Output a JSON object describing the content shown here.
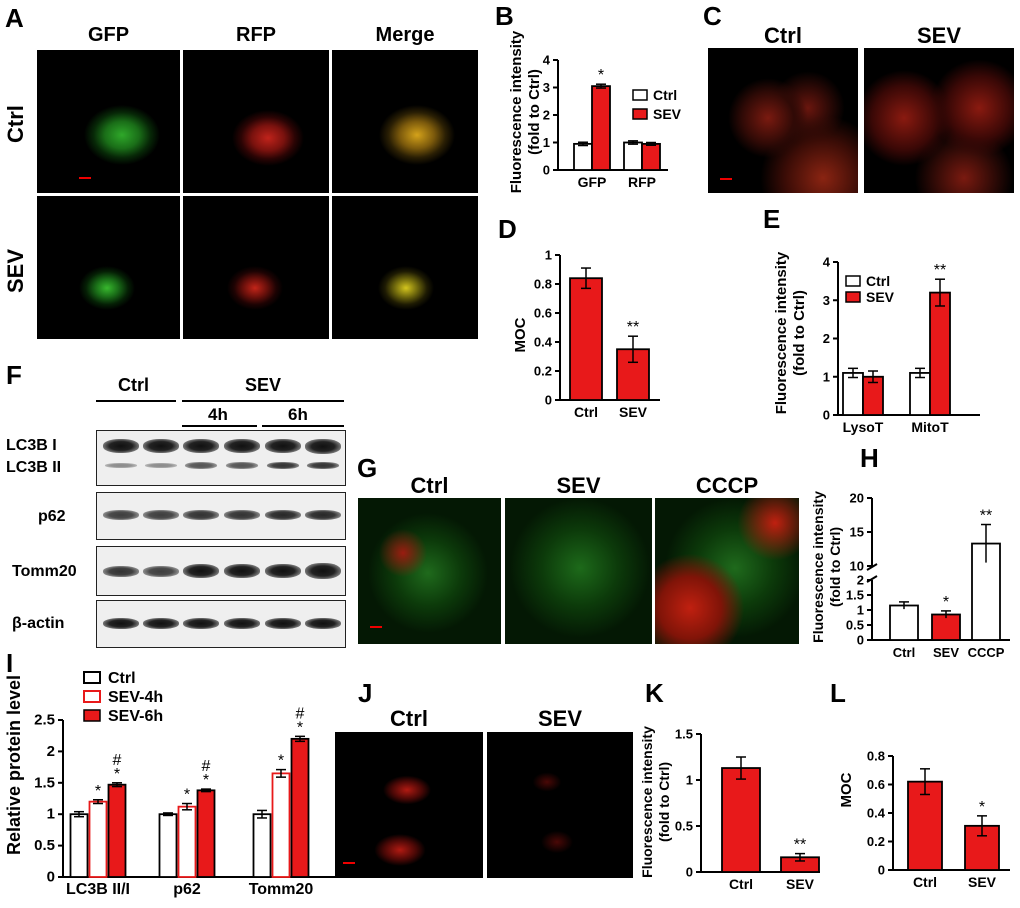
{
  "panels": {
    "A": {
      "label": "A",
      "cols": [
        "GFP",
        "RFP",
        "Merge"
      ],
      "rows": [
        "Ctrl",
        "SEV"
      ]
    },
    "B": {
      "label": "B",
      "ylabel": [
        "Fluorescence intensity",
        "(fold to Ctrl)"
      ],
      "legend": [
        "Ctrl",
        "SEV"
      ]
    },
    "C": {
      "label": "C",
      "cols": [
        "Ctrl",
        "SEV"
      ]
    },
    "D": {
      "label": "D",
      "ylabel": "MOC"
    },
    "E": {
      "label": "E",
      "ylabel": [
        "Fluorescence intensity",
        "(fold to Ctrl)"
      ],
      "legend": [
        "Ctrl",
        "SEV"
      ]
    },
    "F": {
      "label": "F",
      "ctrl": "Ctrl",
      "sev": "SEV",
      "t4": "4h",
      "t6": "6h",
      "rows": [
        "LC3B I",
        "LC3B II",
        "p62",
        "Tomm20",
        "β-actin"
      ]
    },
    "G": {
      "label": "G",
      "cols": [
        "Ctrl",
        "SEV",
        "CCCP"
      ]
    },
    "H": {
      "label": "H",
      "ylabel": [
        "Fluorescence intensity",
        "(fold to Ctrl)"
      ]
    },
    "I": {
      "label": "I",
      "ylabel": "Relative protein level",
      "legend": [
        "Ctrl",
        "SEV-4h",
        "SEV-6h"
      ]
    },
    "J": {
      "label": "J",
      "cols": [
        "Ctrl",
        "SEV"
      ]
    },
    "K": {
      "label": "K",
      "ylabel": [
        "Fluorescence intensity",
        "(fold to Ctrl)"
      ]
    },
    "L": {
      "label": "L",
      "ylabel": "MOC"
    }
  },
  "colors": {
    "ctrl": "#ffffff",
    "sev": "#e8191a",
    "edge": "#000000"
  },
  "chart_data": [
    {
      "id": "B",
      "type": "bar",
      "categories": [
        "GFP",
        "RFP"
      ],
      "ylim": [
        0,
        4
      ],
      "yticks": [
        0,
        1,
        2,
        3,
        4
      ],
      "series": [
        {
          "name": "Ctrl",
          "values": [
            0.95,
            1.0
          ],
          "err": [
            0.06,
            0.06
          ]
        },
        {
          "name": "SEV",
          "values": [
            3.05,
            0.95
          ],
          "err": [
            0.07,
            0.05
          ]
        }
      ],
      "annotations": [
        {
          "category": "GFP",
          "series": "SEV",
          "text": "*"
        }
      ]
    },
    {
      "id": "D",
      "type": "bar",
      "categories": [
        "Ctrl",
        "SEV"
      ],
      "ylim": [
        0,
        1.0
      ],
      "yticks": [
        0,
        0.2,
        0.4,
        0.6,
        0.8,
        1.0
      ],
      "series": [
        {
          "values": [
            0.84,
            0.35
          ],
          "err": [
            0.07,
            0.09
          ]
        }
      ],
      "annotations": [
        {
          "category": "SEV",
          "text": "**"
        }
      ]
    },
    {
      "id": "E",
      "type": "bar",
      "categories": [
        "LysoT",
        "MitoT"
      ],
      "ylim": [
        0,
        4
      ],
      "yticks": [
        0,
        1,
        2,
        3,
        4
      ],
      "series": [
        {
          "name": "Ctrl",
          "values": [
            1.1,
            1.1
          ],
          "err": [
            0.12,
            0.12
          ]
        },
        {
          "name": "SEV",
          "values": [
            1.0,
            3.2
          ],
          "err": [
            0.15,
            0.35
          ]
        }
      ],
      "annotations": [
        {
          "category": "MitoT",
          "series": "SEV",
          "text": "**"
        }
      ]
    },
    {
      "id": "H",
      "type": "bar",
      "categories": [
        "Ctrl",
        "SEV",
        "CCCP"
      ],
      "ylim": [
        0,
        20
      ],
      "axis_break": [
        2.0,
        10
      ],
      "yticks": [
        0,
        0.5,
        1.0,
        1.5,
        2.0,
        10,
        15,
        20
      ],
      "series": [
        {
          "values": [
            1.15,
            0.85,
            13.3
          ],
          "err": [
            0.12,
            0.12,
            2.8
          ]
        }
      ],
      "annotations": [
        {
          "category": "SEV",
          "text": "*"
        },
        {
          "category": "CCCP",
          "text": "**"
        }
      ]
    },
    {
      "id": "I",
      "type": "bar",
      "categories": [
        "LC3B II/I",
        "p62",
        "Tomm20"
      ],
      "ylim": [
        0,
        2.5
      ],
      "yticks": [
        0,
        0.5,
        1.0,
        1.5,
        2.0,
        2.5
      ],
      "series": [
        {
          "name": "Ctrl",
          "values": [
            1.0,
            1.0,
            1.0
          ],
          "err": [
            0.04,
            0.02,
            0.06
          ]
        },
        {
          "name": "SEV-4h",
          "values": [
            1.2,
            1.12,
            1.65
          ],
          "err": [
            0.03,
            0.05,
            0.06
          ]
        },
        {
          "name": "SEV-6h",
          "values": [
            1.47,
            1.38,
            2.2
          ],
          "err": [
            0.03,
            0.02,
            0.04
          ]
        }
      ],
      "annotations": [
        {
          "category": "LC3B II/I",
          "series": "SEV-4h",
          "text": "*"
        },
        {
          "category": "LC3B II/I",
          "series": "SEV-6h",
          "text": "#*"
        },
        {
          "category": "p62",
          "series": "SEV-4h",
          "text": "*"
        },
        {
          "category": "p62",
          "series": "SEV-6h",
          "text": "#*"
        },
        {
          "category": "Tomm20",
          "series": "SEV-4h",
          "text": "*"
        },
        {
          "category": "Tomm20",
          "series": "SEV-6h",
          "text": "#*"
        }
      ]
    },
    {
      "id": "K",
      "type": "bar",
      "categories": [
        "Ctrl",
        "SEV"
      ],
      "ylim": [
        0,
        1.5
      ],
      "yticks": [
        0,
        0.5,
        1.0,
        1.5
      ],
      "series": [
        {
          "values": [
            1.13,
            0.16
          ],
          "err": [
            0.12,
            0.04
          ]
        }
      ],
      "annotations": [
        {
          "category": "SEV",
          "text": "**"
        }
      ]
    },
    {
      "id": "L",
      "type": "bar",
      "categories": [
        "Ctrl",
        "SEV"
      ],
      "ylim": [
        0,
        0.8
      ],
      "yticks": [
        0,
        0.2,
        0.4,
        0.6,
        0.8
      ],
      "series": [
        {
          "values": [
            0.62,
            0.31
          ],
          "err": [
            0.09,
            0.07
          ]
        }
      ],
      "annotations": [
        {
          "category": "SEV",
          "text": "*"
        }
      ]
    }
  ]
}
